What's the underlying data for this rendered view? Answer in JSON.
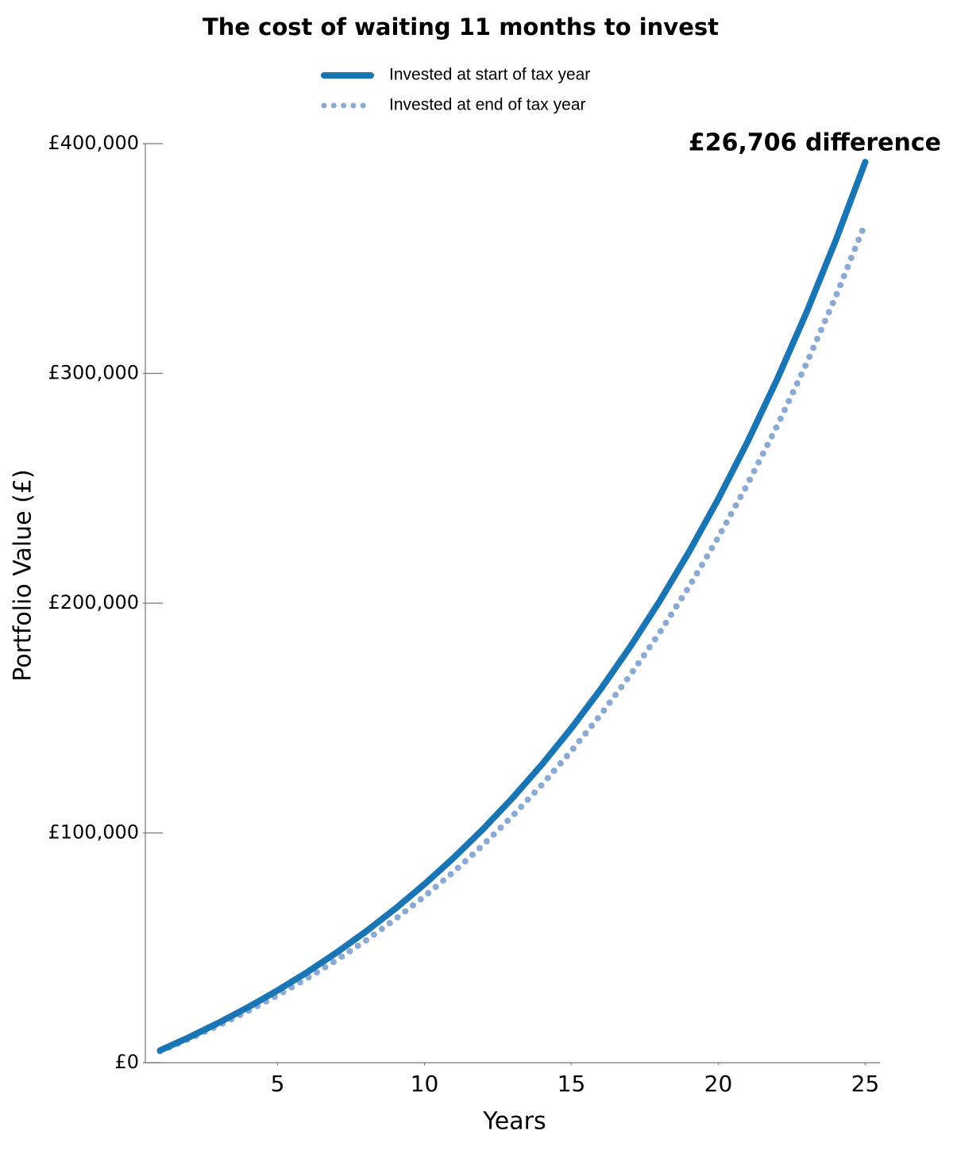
{
  "chart_data": {
    "type": "line",
    "title": "The cost of waiting 11 months to invest",
    "xlabel": "Years",
    "ylabel": "Portfolio Value (£)",
    "annotation": "£26,706 difference",
    "x": [
      1,
      2,
      3,
      4,
      5,
      6,
      7,
      8,
      9,
      10,
      11,
      12,
      13,
      14,
      15,
      16,
      17,
      18,
      19,
      20,
      21,
      22,
      23,
      24,
      25
    ],
    "series": [
      {
        "name": "Invested at start of tax year",
        "color": "#1a75b5",
        "style": "solid",
        "values": [
          5362,
          11153,
          17407,
          24165,
          31458,
          39338,
          47843,
          57033,
          66963,
          77677,
          89256,
          101763,
          115262,
          129845,
          145599,
          162604,
          180974,
          200814,
          222243,
          245390,
          270374,
          297369,
          326523,
          358006,
          392012
        ]
      },
      {
        "name": "Invested at end of tax year",
        "color": "#8aaad4",
        "style": "dotted",
        "values": [
          4997,
          10393,
          16221,
          22519,
          29315,
          36658,
          44584,
          53147,
          62401,
          72385,
          83176,
          94831,
          107410,
          120999,
          135680,
          151526,
          168645,
          187134,
          207103,
          228673,
          251955,
          277110,
          304278,
          333617,
          365306
        ]
      }
    ],
    "xlim": [
      0.5,
      25.5
    ],
    "xticks": [
      5,
      10,
      15,
      20,
      25
    ],
    "ylim": [
      0,
      400000
    ],
    "yticks": [
      {
        "value": 0,
        "label": "£0"
      },
      {
        "value": 100000,
        "label": "£100,000"
      },
      {
        "value": 200000,
        "label": "£200,000"
      },
      {
        "value": 300000,
        "label": "£300,000"
      },
      {
        "value": 400000,
        "label": "£400,000"
      }
    ],
    "grid": false,
    "legend": "top"
  }
}
